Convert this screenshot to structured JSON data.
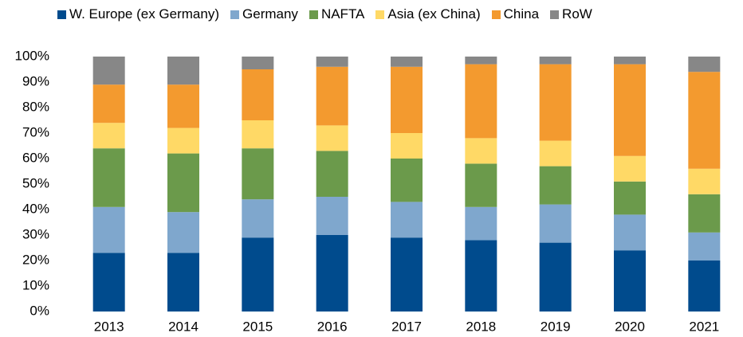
{
  "chart_data": {
    "type": "stacked_bar",
    "categories": [
      "2013",
      "2014",
      "2015",
      "2016",
      "2017",
      "2018",
      "2019",
      "2020",
      "2021"
    ],
    "series": [
      {
        "name": "W. Europe (ex Germany)",
        "color": "#004b8d",
        "values": [
          23,
          23,
          29,
          30,
          29,
          28,
          27,
          24,
          20
        ]
      },
      {
        "name": "Germany",
        "color": "#7fa7cd",
        "values": [
          18,
          16,
          15,
          15,
          14,
          13,
          15,
          14,
          11
        ]
      },
      {
        "name": "NAFTA",
        "color": "#6b9a4b",
        "values": [
          23,
          23,
          20,
          18,
          17,
          17,
          15,
          13,
          15
        ]
      },
      {
        "name": "Asia (ex China)",
        "color": "#ffd966",
        "values": [
          10,
          10,
          11,
          10,
          10,
          10,
          10,
          10,
          10
        ]
      },
      {
        "name": "China",
        "color": "#f39a2f",
        "values": [
          15,
          17,
          20,
          23,
          26,
          29,
          30,
          36,
          38
        ]
      },
      {
        "name": "RoW",
        "color": "#878787",
        "values": [
          11,
          11,
          5,
          4,
          4,
          3,
          3,
          3,
          6
        ]
      }
    ],
    "ylim": [
      0,
      100
    ],
    "yticks": [
      {
        "value": 0,
        "label": "0%"
      },
      {
        "value": 10,
        "label": "10%"
      },
      {
        "value": 20,
        "label": "20%"
      },
      {
        "value": 30,
        "label": "30%"
      },
      {
        "value": 40,
        "label": "40%"
      },
      {
        "value": 50,
        "label": "50%"
      },
      {
        "value": 60,
        "label": "60%"
      },
      {
        "value": 70,
        "label": "70%"
      },
      {
        "value": 80,
        "label": "80%"
      },
      {
        "value": 90,
        "label": "90%"
      },
      {
        "value": 100,
        "label": "100%"
      }
    ],
    "legend": "top"
  }
}
